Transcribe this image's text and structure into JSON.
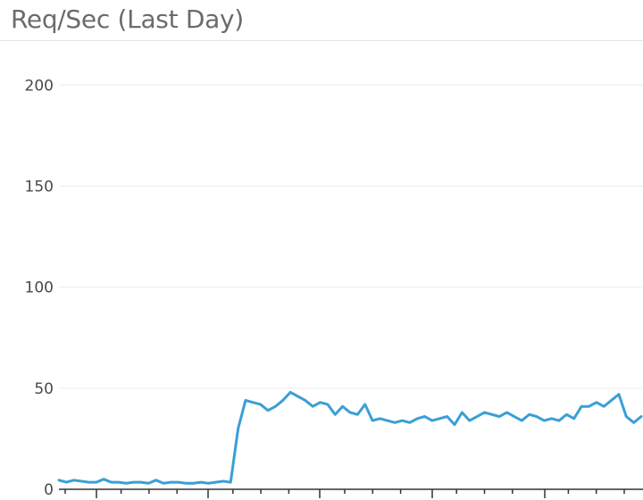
{
  "panel": {
    "title": "Req/Sec (Last Day)"
  },
  "colors": {
    "series": "#3a9fd6"
  },
  "chart_data": {
    "type": "line",
    "title": "Req/Sec (Last Day)",
    "xlabel": "",
    "ylabel": "",
    "ylim": [
      0,
      220
    ],
    "yticks": [
      0,
      50,
      100,
      150,
      200
    ],
    "x_tick_count": 5,
    "grid": true,
    "legend": "none",
    "series": [
      {
        "values": [
          4.5,
          3.5,
          4.5,
          4,
          3.5,
          3.5,
          5,
          3.5,
          3.5,
          3,
          3.5,
          3.5,
          3,
          4.5,
          3,
          3.5,
          3.5,
          3,
          3,
          3.5,
          3,
          3.5,
          4,
          3.5,
          30,
          44,
          43,
          42,
          39,
          41,
          44,
          48,
          46,
          44,
          41,
          43,
          42,
          37,
          41,
          38,
          37,
          42,
          34,
          35,
          34,
          33,
          34,
          33,
          35,
          36,
          34,
          35,
          36,
          32,
          38,
          34,
          36,
          38,
          37,
          36,
          38,
          36,
          34,
          37,
          36,
          34,
          35,
          34,
          37,
          35,
          41,
          41,
          43,
          41,
          44,
          47,
          36,
          33,
          36
        ]
      }
    ]
  }
}
